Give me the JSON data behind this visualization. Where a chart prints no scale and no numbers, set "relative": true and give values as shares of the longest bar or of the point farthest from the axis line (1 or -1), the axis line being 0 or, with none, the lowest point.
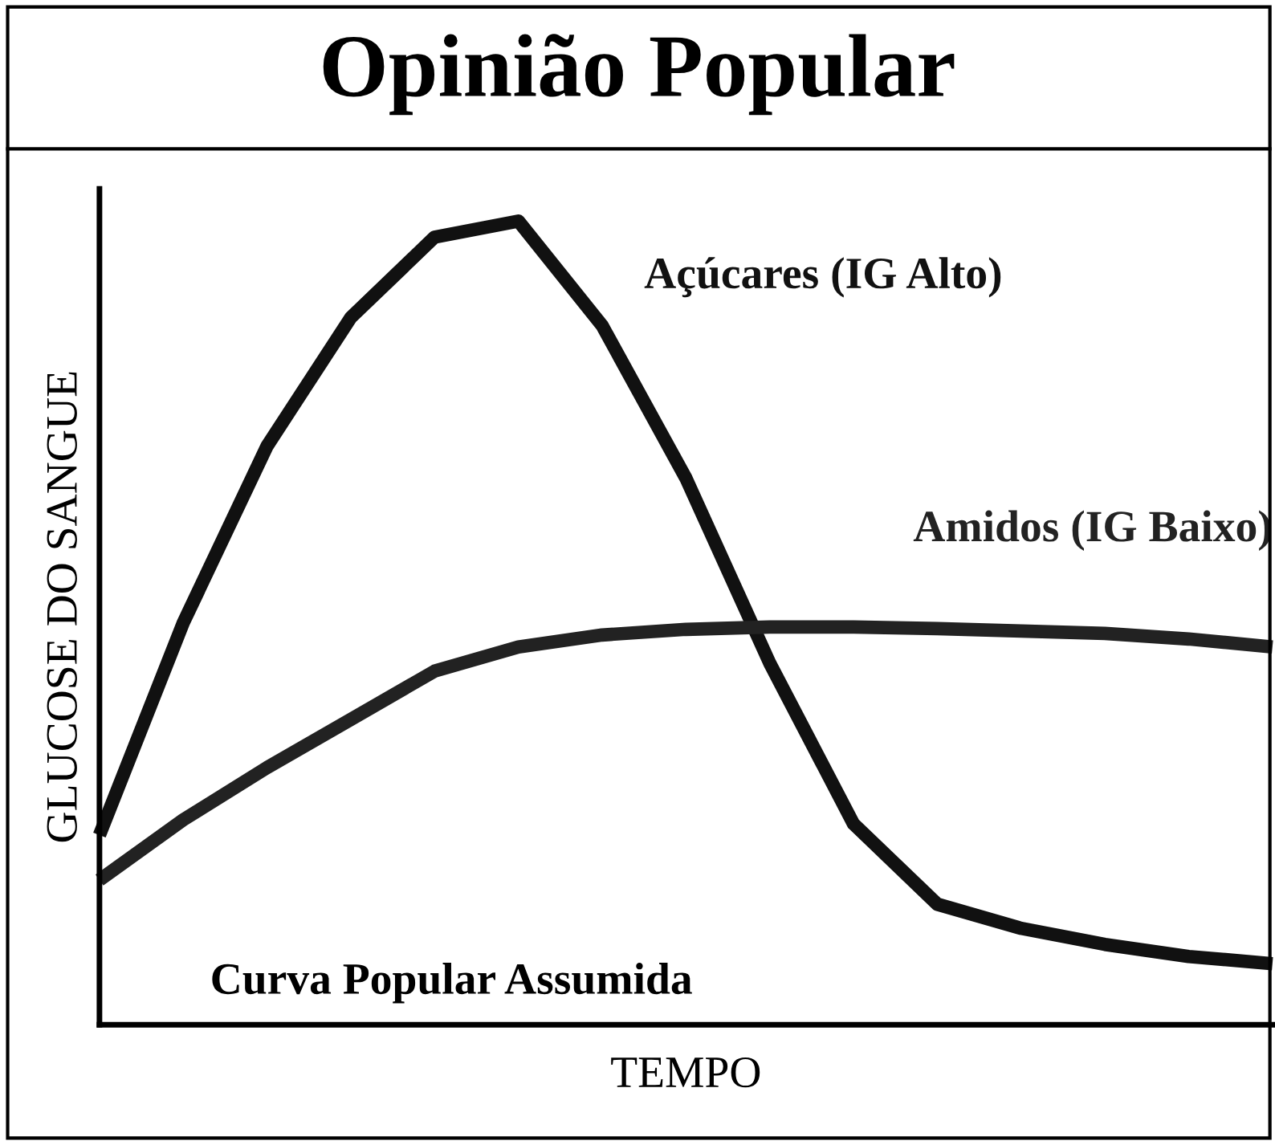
{
  "chart_data": {
    "type": "line",
    "title": "Opinião Popular",
    "xlabel": "TEMPO",
    "ylabel": "GLUCOSE DO SANGUE",
    "relative": true,
    "categories": [
      null,
      null,
      null,
      null,
      null,
      null,
      null,
      null,
      null,
      null,
      null,
      null,
      null,
      null,
      null
    ],
    "series": [
      {
        "name": "Açúcares (IG Alto)",
        "color": "#111111",
        "values": [
          0.236,
          0.5,
          0.72,
          0.88,
          0.98,
          1,
          0.87,
          0.68,
          0.45,
          0.25,
          0.15,
          0.12,
          0.1,
          0.085,
          0.076
        ]
      },
      {
        "name": "Amidos (IG Baixo)",
        "color": "#222222",
        "values": [
          0.18,
          0.255,
          0.32,
          0.38,
          0.44,
          0.47,
          0.485,
          0.492,
          0.495,
          0.495,
          0.493,
          0.49,
          0.487,
          0.48,
          0.47
        ]
      }
    ],
    "annotations": [
      "Curva Popular Assumida"
    ],
    "legend": false,
    "marker": "none",
    "line_style": "solid"
  }
}
